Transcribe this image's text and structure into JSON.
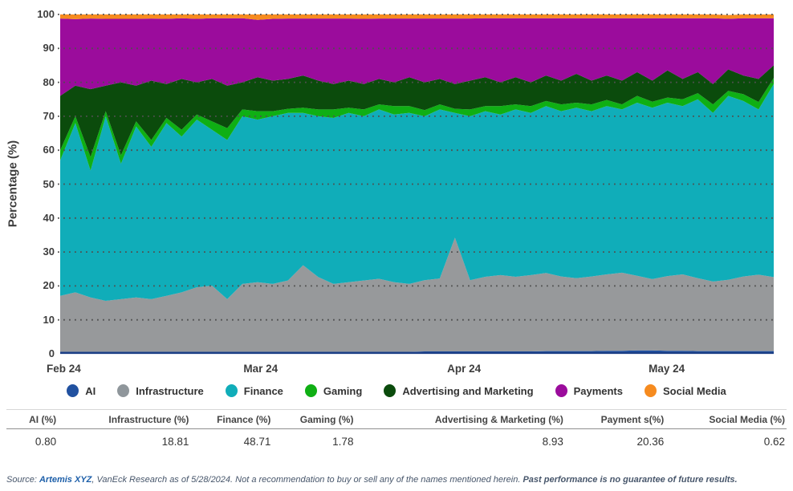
{
  "y_axis": {
    "title": "Percentage (%)",
    "ticks": [
      0,
      10,
      20,
      30,
      40,
      50,
      60,
      70,
      80,
      90,
      100
    ]
  },
  "x_axis": {
    "labels": [
      {
        "label": "Feb 24",
        "pos": 0.005
      },
      {
        "label": "Mar 24",
        "pos": 0.281
      },
      {
        "label": "Apr 24",
        "pos": 0.566
      },
      {
        "label": "May 24",
        "pos": 0.85
      }
    ]
  },
  "chart_data": {
    "type": "area",
    "stacked": true,
    "percent": true,
    "title": "",
    "xlabel": "",
    "ylabel": "Percentage (%)",
    "ylim": [
      0,
      100
    ],
    "grid": "dotted-horizontal",
    "x_range": [
      "Feb 24",
      "May 24"
    ],
    "series": [
      {
        "id": "ai",
        "name": "AI",
        "color": "#2151a0",
        "values": [
          0.6,
          0.6,
          0.6,
          0.6,
          0.6,
          0.6,
          0.6,
          0.6,
          0.6,
          0.6,
          0.6,
          0.6,
          0.6,
          0.6,
          0.6,
          0.6,
          0.6,
          0.6,
          0.6,
          0.6,
          0.6,
          0.6,
          0.6,
          0.6,
          0.7,
          0.7,
          0.7,
          0.7,
          0.7,
          0.7,
          0.7,
          0.7,
          0.8,
          0.8,
          0.8,
          0.8,
          0.9,
          0.9,
          1.0,
          1.0,
          0.9,
          0.9,
          0.8,
          0.8,
          0.8,
          0.8,
          0.8,
          0.8
        ]
      },
      {
        "id": "infrastructure",
        "name": "Infrastructure",
        "color": "#97999b",
        "values": [
          16.5,
          17.5,
          16,
          15,
          15.5,
          16,
          15.5,
          16.5,
          17.5,
          19,
          19.5,
          15.5,
          20,
          20.5,
          20,
          21,
          25.5,
          22,
          20,
          20.5,
          21,
          21.5,
          20.5,
          20,
          21,
          21.5,
          33.5,
          21,
          22,
          22.5,
          22,
          22.5,
          23,
          22,
          21.5,
          22,
          22.5,
          23,
          22,
          21,
          22,
          22.5,
          21.5,
          20.5,
          21,
          22,
          22.5,
          21.8
        ]
      },
      {
        "id": "finance",
        "name": "Finance",
        "color": "#10adb9",
        "values": [
          39.9,
          49.9,
          37.4,
          54.4,
          39.9,
          50.4,
          44.9,
          50.9,
          45.9,
          49.4,
          45.9,
          46.9,
          49.4,
          47.9,
          49.4,
          49.4,
          44.9,
          47.4,
          48.9,
          49.9,
          48.4,
          49.9,
          49.4,
          50.4,
          48.3,
          49.8,
          36.8,
          48.3,
          48.8,
          47.3,
          49.3,
          47.8,
          49.2,
          48.7,
          50.2,
          48.7,
          49.6,
          48.1,
          51.0,
          50.5,
          51.1,
          49.6,
          52.7,
          49.7,
          54.2,
          51.7,
          48.7,
          56.9
        ]
      },
      {
        "id": "gaming",
        "name": "Gaming",
        "color": "#0faf14",
        "values": [
          3,
          2,
          4,
          1.5,
          2.5,
          1.5,
          2,
          1.5,
          2,
          1.5,
          2.5,
          3.5,
          2,
          2.5,
          1.5,
          1.2,
          1.5,
          2,
          2.5,
          1.5,
          2,
          1.5,
          2.5,
          2,
          1.8,
          1.5,
          1.2,
          2,
          1.5,
          2.5,
          1.5,
          2,
          1.5,
          2,
          1.5,
          2,
          1.8,
          1.5,
          2,
          1.8,
          1.5,
          2,
          1.8,
          2.5,
          1.5,
          2,
          2.2,
          1.8
        ]
      },
      {
        "id": "advertising-and-marketing",
        "name": "Advertising and Marketing",
        "color": "#0b4b0c",
        "values": [
          16,
          9,
          20,
          7.5,
          21.5,
          10.5,
          17.5,
          10,
          15,
          9.5,
          12.5,
          12.5,
          8,
          10,
          9,
          8.8,
          9.5,
          8.5,
          7.5,
          8,
          7.5,
          7.5,
          7,
          8.5,
          8.2,
          7.5,
          7.3,
          8.5,
          8.5,
          7,
          8,
          7,
          7.5,
          7,
          8.5,
          7,
          7.2,
          7,
          7,
          6.2,
          8,
          6,
          6.2,
          6,
          6.3,
          5.5,
          6.8,
          3.7
        ]
      },
      {
        "id": "payments",
        "name": "Payments",
        "color": "#9b0c9c",
        "values": [
          22.8,
          19.6,
          20.8,
          19.7,
          18.7,
          19.7,
          18.3,
          19.2,
          17.9,
          18.7,
          17.9,
          19.9,
          18.9,
          16.9,
          18.2,
          17.8,
          16.8,
          18.3,
          19.3,
          18.3,
          19.2,
          17.8,
          18.8,
          17.3,
          18.8,
          17.8,
          19.3,
          18.3,
          17.4,
          18.9,
          17.4,
          18.9,
          16.9,
          18.4,
          16.4,
          18.4,
          16.9,
          18.4,
          15.9,
          18.4,
          15.4,
          17.9,
          15.9,
          19.4,
          14.9,
          16.9,
          17.9,
          13.9
        ]
      },
      {
        "id": "social-media",
        "name": "Social Media",
        "color": "#f68b1f",
        "values": [
          1.2,
          1.4,
          1.2,
          1.3,
          1.3,
          1.3,
          1.2,
          1.3,
          1.1,
          1.3,
          1.1,
          1.1,
          1.1,
          1.6,
          1.3,
          1.2,
          1.2,
          1.2,
          1.2,
          1.2,
          1.3,
          1.2,
          1.2,
          1.2,
          1.2,
          1.2,
          1.2,
          1.2,
          1.1,
          1.1,
          1.1,
          1.1,
          1.1,
          1.1,
          1.1,
          1.1,
          1.1,
          1.1,
          1.1,
          1.1,
          1.1,
          1.1,
          1.1,
          1.1,
          1.1,
          1.1,
          1.1,
          1.1
        ]
      }
    ]
  },
  "legend": {
    "items": [
      {
        "id": "ai",
        "label": "AI",
        "color": "#2151a0"
      },
      {
        "id": "infrastructure",
        "label": "Infrastructure",
        "color": "#8f969b"
      },
      {
        "id": "finance",
        "label": "Finance",
        "color": "#10adb9"
      },
      {
        "id": "gaming",
        "label": "Gaming",
        "color": "#0faf14"
      },
      {
        "id": "advertising-and-marketing",
        "label": "Advertising and Marketing",
        "color": "#0b4b0c"
      },
      {
        "id": "payments",
        "label": "Payments",
        "color": "#9b0c9c"
      },
      {
        "id": "social-media",
        "label": "Social Media",
        "color": "#f68b1f"
      }
    ]
  },
  "table": {
    "columns": [
      {
        "id": "ai",
        "header": "AI (%)",
        "value": "0.80"
      },
      {
        "id": "infrastructure",
        "header": "Infrastructure (%)",
        "value": "18.81"
      },
      {
        "id": "finance",
        "header": "Finance (%)",
        "value": "48.71"
      },
      {
        "id": "gaming",
        "header": "Gaming (%)",
        "value": "1.78"
      },
      {
        "id": "advertising-and-marketing",
        "header": "Advertising & Marketing (%)",
        "value": "8.93"
      },
      {
        "id": "payments",
        "header": "Payment s(%)",
        "value": "20.36"
      },
      {
        "id": "social-media",
        "header": "Social Media (%)",
        "value": "0.62"
      }
    ]
  },
  "source": {
    "prefix": "Source: ",
    "link": "Artemis XYZ",
    "middle": ", VanEck Research as of 5/28/2024. Not a recommendation to buy or sell any of the names mentioned herein. ",
    "bold": "Past performance is no guarantee of future results."
  },
  "colors": {
    "gridline": "#4f4f4f",
    "axis_line": "#1c3e85",
    "axis_text": "#3d3d3d"
  }
}
